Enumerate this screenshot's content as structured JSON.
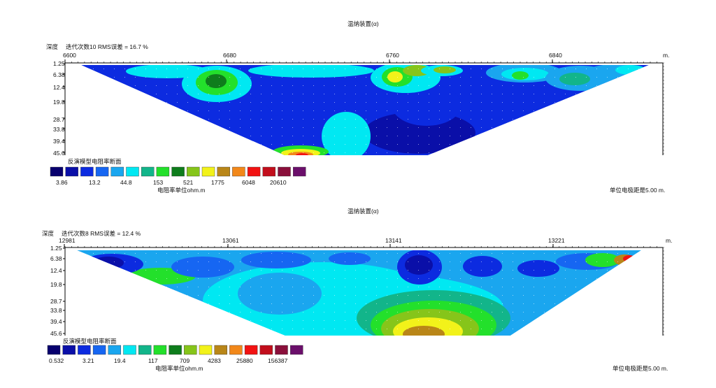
{
  "chart_data": [
    {
      "type": "heatmap",
      "title": "温纳装置(α)",
      "depth_label": "深度",
      "iteration_text": "迭代次数10 RMS误差 = 16.7 %",
      "x_ticks": [
        "6600",
        "6680",
        "6760",
        "6840"
      ],
      "x_unit": "m.",
      "y_ticks": [
        "1.25",
        "6.38",
        "12.4",
        "19.8",
        "28.7",
        "33.8",
        "39.4",
        "45.6"
      ],
      "legend_title": "反演模型电阻率断面",
      "legend_values": [
        "3.86",
        "13.2",
        "44.8",
        "153",
        "521",
        "1775",
        "6048",
        "20610"
      ],
      "legend_unit": "电阻率单位ohm.m",
      "electrode_spacing": "单位电极距是5.00 m."
    },
    {
      "type": "heatmap",
      "title": "温纳装置(α)",
      "depth_label": "深度",
      "iteration_text": "迭代次数8 RMS误差 = 12.4 %",
      "x_ticks": [
        "12981",
        "13061",
        "13141",
        "13221"
      ],
      "x_unit": "m.",
      "y_ticks": [
        "1.25",
        "6.38",
        "12.4",
        "19.8",
        "28.7",
        "33.8",
        "39.4",
        "45.6"
      ],
      "legend_title": "反演模型电阻率断面",
      "legend_values": [
        "0.532",
        "3.21",
        "19.4",
        "117",
        "709",
        "4283",
        "25880",
        "156387"
      ],
      "legend_unit": "电阻率单位ohm.m",
      "electrode_spacing": "单位电极距是5.00 m."
    }
  ],
  "colors": {
    "scale": [
      "#08006e",
      "#0a0fa8",
      "#0c2be0",
      "#1666f2",
      "#1aa6ef",
      "#00e8f2",
      "#12b58a",
      "#23e02b",
      "#0e7d1c",
      "#86c51a",
      "#f2f21a",
      "#b98618",
      "#f2881a",
      "#f21212",
      "#c20e1c",
      "#8a0f3b",
      "#6b0f6b"
    ]
  }
}
